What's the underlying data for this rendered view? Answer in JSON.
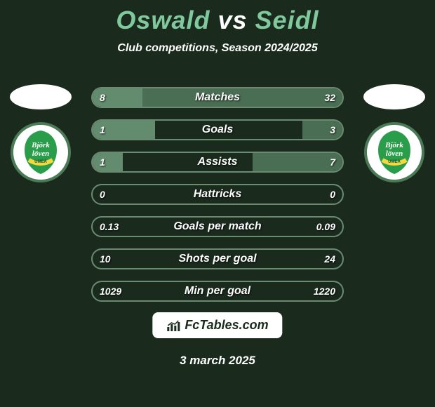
{
  "title": {
    "player1": "Oswald",
    "vs": "vs",
    "player2": "Seidl"
  },
  "subtitle": "Club competitions, Season 2024/2025",
  "colors": {
    "background": "#1a2b1e",
    "accent": "#7fc99d",
    "bar_border": "#6b8a72",
    "bar_left_fill": "#628c6d",
    "bar_right_fill": "#4a6e53",
    "text": "#ffffff"
  },
  "players": {
    "left": {
      "flag_color": "#ffffff",
      "club_name": "Björklöven Umeå"
    },
    "right": {
      "flag_color": "#ffffff",
      "club_name": "Björklöven Umeå"
    }
  },
  "stats": [
    {
      "label": "Matches",
      "left_val": "8",
      "right_val": "32",
      "left_pct": 20,
      "right_pct": 80
    },
    {
      "label": "Goals",
      "left_val": "1",
      "right_val": "3",
      "left_pct": 25,
      "right_pct": 16
    },
    {
      "label": "Assists",
      "left_val": "1",
      "right_val": "7",
      "left_pct": 12,
      "right_pct": 36
    },
    {
      "label": "Hattricks",
      "left_val": "0",
      "right_val": "0",
      "left_pct": 0,
      "right_pct": 0
    },
    {
      "label": "Goals per match",
      "left_val": "0.13",
      "right_val": "0.09",
      "left_pct": 0,
      "right_pct": 0
    },
    {
      "label": "Shots per goal",
      "left_val": "10",
      "right_val": "24",
      "left_pct": 0,
      "right_pct": 0
    },
    {
      "label": "Min per goal",
      "left_val": "1029",
      "right_val": "1220",
      "left_pct": 0,
      "right_pct": 0
    }
  ],
  "footer": {
    "brand": "FcTables.com",
    "date": "3 march 2025"
  }
}
